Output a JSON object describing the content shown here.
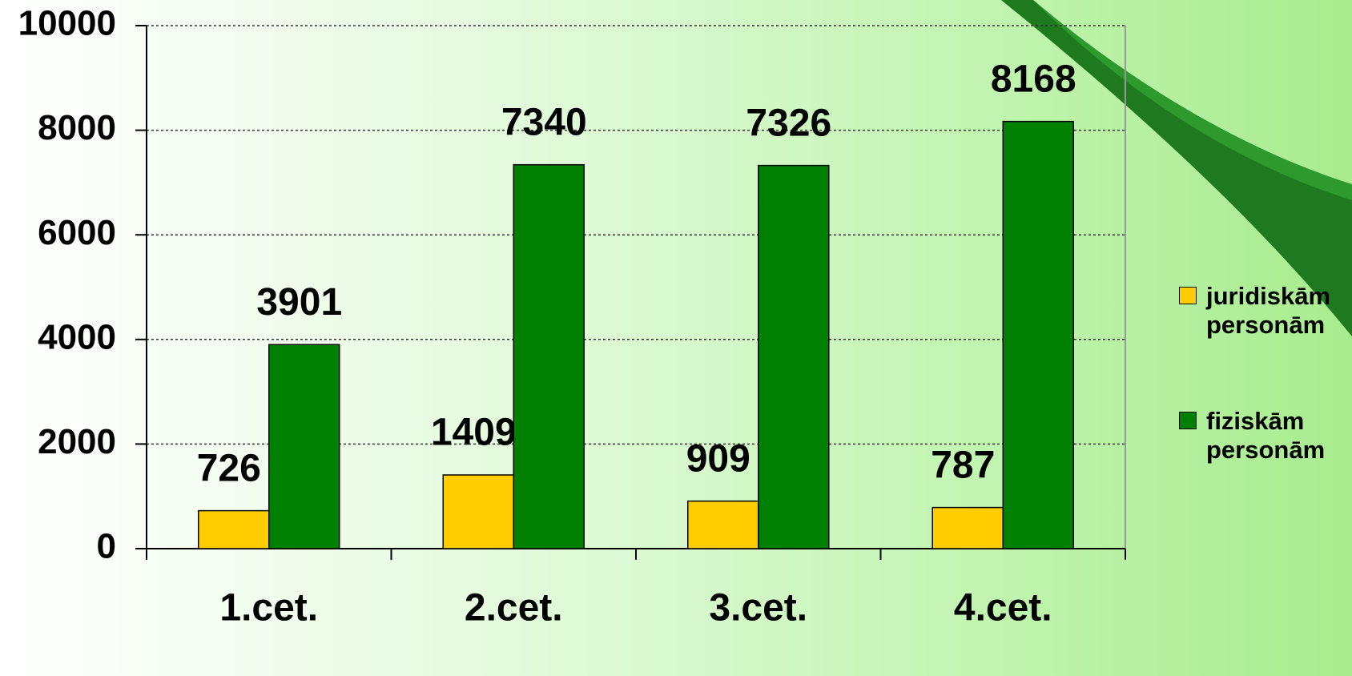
{
  "chart_data": {
    "type": "bar",
    "categories": [
      "1.cet.",
      "2.cet.",
      "3.cet.",
      "4.cet."
    ],
    "series": [
      {
        "name": "juridiskām personām",
        "color": "#ffcc00",
        "values": [
          726,
          1409,
          909,
          787
        ]
      },
      {
        "name": "fiziskām personām",
        "color": "#008000",
        "values": [
          3901,
          7340,
          7326,
          8168
        ]
      }
    ],
    "ylim": [
      0,
      10000
    ],
    "yticks": [
      0,
      2000,
      4000,
      6000,
      8000,
      10000
    ],
    "grid": true
  }
}
